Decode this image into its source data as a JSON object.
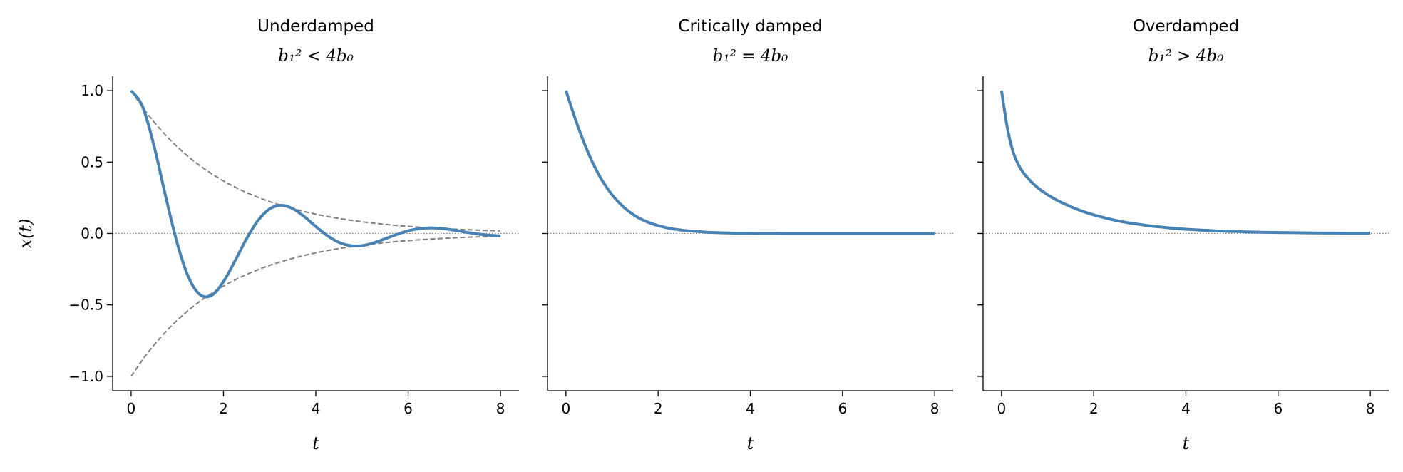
{
  "chart_data": [
    {
      "type": "line",
      "title": "Underdamped",
      "subtitle": "b₁² < 4b₀",
      "xlabel": "t",
      "ylabel": "x(t)",
      "xlim": [
        -0.4,
        8.4
      ],
      "ylim": [
        -1.1,
        1.1
      ],
      "xticks": [
        "0",
        "2",
        "4",
        "6",
        "8"
      ],
      "yticks": [
        "1.0",
        "0.5",
        "0.0",
        "−0.5",
        "−1.0"
      ],
      "show_ytick_labels": true,
      "grid": false,
      "zero_line": true,
      "x": [
        0,
        0.25,
        0.5,
        0.75,
        1,
        1.25,
        1.5,
        1.75,
        2,
        2.25,
        2.5,
        2.75,
        3,
        3.25,
        3.5,
        3.75,
        4,
        4.25,
        4.5,
        4.75,
        5,
        5.25,
        5.5,
        5.75,
        6,
        6.25,
        6.5,
        6.75,
        7,
        7.25,
        7.5,
        7.75,
        8
      ],
      "series": [
        {
          "style": "solid",
          "color": "#4682b4",
          "values": [
            1,
            0.887,
            0.608,
            0.257,
            -0.07,
            -0.311,
            -0.43,
            -0.431,
            -0.337,
            -0.191,
            -0.037,
            0.092,
            0.172,
            0.197,
            0.174,
            0.118,
            0.049,
            -0.015,
            -0.062,
            -0.085,
            -0.085,
            -0.066,
            -0.037,
            -0.007,
            0.019,
            0.034,
            0.039,
            0.034,
            0.023,
            0.009,
            -0.003,
            -0.012,
            -0.017
          ]
        },
        {
          "style": "dashed",
          "color": "#808080",
          "values": [
            1,
            0.8825,
            0.7788,
            0.6873,
            0.6065,
            0.5353,
            0.4724,
            0.4169,
            0.3679,
            0.3247,
            0.2865,
            0.2528,
            0.2231,
            0.1969,
            0.1738,
            0.1534,
            0.1353,
            0.1194,
            0.1054,
            0.093,
            0.0821,
            0.0724,
            0.0639,
            0.0564,
            0.0498,
            0.0439,
            0.0388,
            0.0342,
            0.0302,
            0.0266,
            0.0235,
            0.0208,
            0.0183
          ]
        },
        {
          "style": "dashed",
          "color": "#808080",
          "values": [
            -1,
            -0.8825,
            -0.7788,
            -0.6873,
            -0.6065,
            -0.5353,
            -0.4724,
            -0.4169,
            -0.3679,
            -0.3247,
            -0.2865,
            -0.2528,
            -0.2231,
            -0.1969,
            -0.1738,
            -0.1534,
            -0.1353,
            -0.1194,
            -0.1054,
            -0.093,
            -0.0821,
            -0.0724,
            -0.0639,
            -0.0564,
            -0.0498,
            -0.0439,
            -0.0388,
            -0.0342,
            -0.0302,
            -0.0266,
            -0.0235,
            -0.0208,
            -0.0183
          ]
        }
      ]
    },
    {
      "type": "line",
      "title": "Critically damped",
      "subtitle": "b₁² = 4b₀",
      "xlabel": "t",
      "xlim": [
        -0.4,
        8.4
      ],
      "ylim": [
        -1.1,
        1.1
      ],
      "xticks": [
        "0",
        "2",
        "4",
        "6",
        "8"
      ],
      "show_ytick_labels": false,
      "grid": false,
      "zero_line": true,
      "x": [
        0,
        0.25,
        0.5,
        0.75,
        1,
        1.25,
        1.5,
        1.75,
        2,
        2.25,
        2.5,
        2.75,
        3,
        3.25,
        3.5,
        3.75,
        4,
        4.25,
        4.5,
        4.75,
        5,
        5.25,
        5.5,
        5.75,
        6,
        6.25,
        6.5,
        6.75,
        7,
        7.25,
        7.5,
        7.75,
        8
      ],
      "series": [
        {
          "style": "solid",
          "color": "#4682b4",
          "values": [
            1,
            0.758,
            0.552,
            0.39,
            0.271,
            0.185,
            0.124,
            0.083,
            0.055,
            0.036,
            0.024,
            0.016,
            0.01,
            0.006,
            0.004,
            0.002,
            0.002,
            0.001,
            0.001,
            0,
            0,
            0,
            0,
            0,
            0,
            0,
            0,
            0,
            0,
            0,
            0,
            0,
            0
          ]
        }
      ]
    },
    {
      "type": "line",
      "title": "Overdamped",
      "subtitle": "b₁² > 4b₀",
      "xlabel": "t",
      "xlim": [
        -0.4,
        8.4
      ],
      "ylim": [
        -1.1,
        1.1
      ],
      "xticks": [
        "0",
        "2",
        "4",
        "6",
        "8"
      ],
      "show_ytick_labels": false,
      "grid": false,
      "zero_line": true,
      "x": [
        0,
        0.125,
        0.25,
        0.375,
        0.5,
        0.75,
        1,
        1.25,
        1.5,
        1.75,
        2,
        2.25,
        2.5,
        2.75,
        3,
        3.25,
        3.5,
        3.75,
        4,
        4.25,
        4.5,
        4.75,
        5,
        5.25,
        5.5,
        5.75,
        6,
        6.25,
        6.5,
        6.75,
        7,
        7.25,
        7.5,
        7.75,
        8
      ],
      "series": [
        {
          "style": "solid",
          "color": "#4682b4",
          "values": [
            1,
            0.741,
            0.572,
            0.476,
            0.414,
            0.33,
            0.271,
            0.225,
            0.188,
            0.156,
            0.13,
            0.109,
            0.09,
            0.075,
            0.063,
            0.052,
            0.044,
            0.036,
            0.03,
            0.025,
            0.021,
            0.017,
            0.015,
            0.012,
            0.01,
            0.008,
            0.007,
            0.006,
            0.005,
            0.004,
            0.003,
            0.003,
            0.002,
            0.002,
            0.002
          ]
        }
      ]
    }
  ]
}
